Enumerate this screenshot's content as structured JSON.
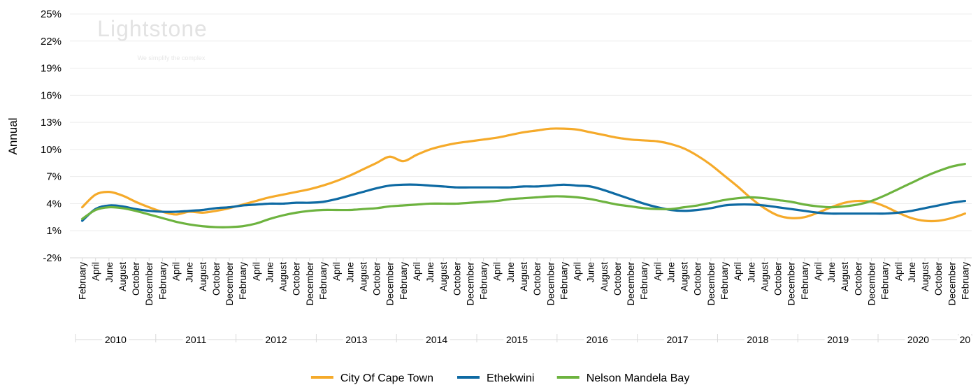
{
  "chart_data": {
    "type": "line",
    "y_label": "Annual",
    "watermark": {
      "brand": "Lightstone",
      "tagline": "We simplify the complex"
    },
    "categories": [
      "February",
      "April",
      "June",
      "August",
      "October",
      "December",
      "February",
      "April",
      "June",
      "August",
      "October",
      "December",
      "February",
      "April",
      "June",
      "August",
      "October",
      "December",
      "February",
      "April",
      "June",
      "August",
      "October",
      "December",
      "February",
      "April",
      "June",
      "August",
      "October",
      "December",
      "February",
      "April",
      "June",
      "August",
      "October",
      "December",
      "February",
      "April",
      "June",
      "August",
      "October",
      "December",
      "February",
      "April",
      "June",
      "August",
      "October",
      "December",
      "February",
      "April",
      "June",
      "August",
      "October",
      "December",
      "February",
      "April",
      "June",
      "August",
      "October",
      "December",
      "February",
      "April",
      "June",
      "August",
      "October",
      "December",
      "February"
    ],
    "x_groups": [
      "2010",
      "2011",
      "2012",
      "2013",
      "2014",
      "2015",
      "2016",
      "2017",
      "2018",
      "2019",
      "2020",
      "20"
    ],
    "ylim": [
      -2,
      25
    ],
    "yticks": [
      {
        "value": -2,
        "label": "-2%"
      },
      {
        "value": 1,
        "label": "1%"
      },
      {
        "value": 4,
        "label": "4%"
      },
      {
        "value": 7,
        "label": "7%"
      },
      {
        "value": 10,
        "label": "10%"
      },
      {
        "value": 13,
        "label": "13%"
      },
      {
        "value": 16,
        "label": "16%"
      },
      {
        "value": 19,
        "label": "19%"
      },
      {
        "value": 22,
        "label": "22%"
      },
      {
        "value": 25,
        "label": "25%"
      }
    ],
    "grid": true,
    "legend": "bottom",
    "series": [
      {
        "name": "City Of Cape Town",
        "color": "#f5aa2a",
        "values": [
          3.6,
          5.0,
          5.3,
          4.9,
          4.2,
          3.6,
          3.1,
          2.8,
          3.1,
          3.0,
          3.2,
          3.5,
          3.9,
          4.3,
          4.7,
          5.0,
          5.3,
          5.6,
          6.0,
          6.5,
          7.1,
          7.8,
          8.5,
          9.2,
          8.7,
          9.4,
          10.0,
          10.4,
          10.7,
          10.9,
          11.1,
          11.3,
          11.6,
          11.9,
          12.1,
          12.3,
          12.3,
          12.2,
          11.9,
          11.6,
          11.3,
          11.1,
          11.0,
          10.9,
          10.6,
          10.1,
          9.3,
          8.3,
          7.1,
          5.9,
          4.6,
          3.5,
          2.7,
          2.4,
          2.5,
          3.0,
          3.6,
          4.1,
          4.3,
          4.2,
          3.7,
          3.0,
          2.4,
          2.1,
          2.1,
          2.4,
          2.9
        ]
      },
      {
        "name": "Ethekwini",
        "color": "#0e6aa3",
        "values": [
          2.1,
          3.4,
          3.8,
          3.7,
          3.4,
          3.2,
          3.1,
          3.1,
          3.2,
          3.3,
          3.5,
          3.6,
          3.8,
          3.9,
          4.0,
          4.0,
          4.1,
          4.1,
          4.2,
          4.5,
          4.9,
          5.3,
          5.7,
          6.0,
          6.1,
          6.1,
          6.0,
          5.9,
          5.8,
          5.8,
          5.8,
          5.8,
          5.8,
          5.9,
          5.9,
          6.0,
          6.1,
          6.0,
          5.9,
          5.5,
          5.0,
          4.5,
          4.0,
          3.6,
          3.3,
          3.2,
          3.3,
          3.5,
          3.8,
          3.9,
          3.9,
          3.8,
          3.6,
          3.4,
          3.2,
          3.0,
          2.9,
          2.9,
          2.9,
          2.9,
          2.9,
          3.0,
          3.2,
          3.5,
          3.8,
          4.1,
          4.3
        ]
      },
      {
        "name": "Nelson Mandela Bay",
        "color": "#6db33f",
        "values": [
          2.3,
          3.3,
          3.6,
          3.5,
          3.2,
          2.8,
          2.4,
          2.0,
          1.7,
          1.5,
          1.4,
          1.4,
          1.5,
          1.8,
          2.3,
          2.7,
          3.0,
          3.2,
          3.3,
          3.3,
          3.3,
          3.4,
          3.5,
          3.7,
          3.8,
          3.9,
          4.0,
          4.0,
          4.0,
          4.1,
          4.2,
          4.3,
          4.5,
          4.6,
          4.7,
          4.8,
          4.8,
          4.7,
          4.5,
          4.2,
          3.9,
          3.7,
          3.5,
          3.4,
          3.4,
          3.6,
          3.8,
          4.1,
          4.4,
          4.6,
          4.7,
          4.6,
          4.4,
          4.2,
          3.9,
          3.7,
          3.6,
          3.7,
          3.9,
          4.3,
          4.9,
          5.6,
          6.3,
          7.0,
          7.6,
          8.1,
          8.4
        ]
      }
    ]
  }
}
